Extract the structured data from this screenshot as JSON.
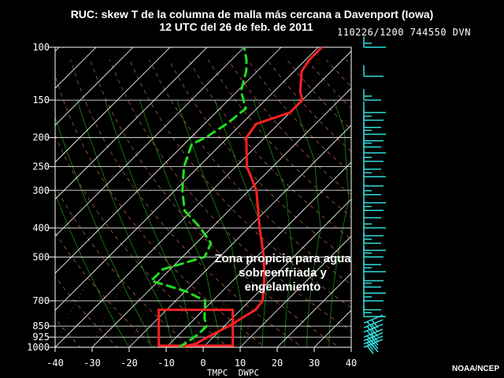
{
  "header": {
    "title_line1": "RUC: skew T de la columna de malla más cercana a Davenport (Iowa)",
    "title_line2": "12 UTC del 26 de feb. de 2011",
    "stamp": "110226/1200 744550 DVN"
  },
  "annotation": "Zona propicia para agua sobreenfriada y engelamiento",
  "credit": "NOAA/NCEP",
  "colors": {
    "background": "#000000",
    "grid": "#ffffff",
    "temperature": "#ff2020",
    "dewpoint": "#22dd22",
    "wind": "#33dddd",
    "box": "#ff2020",
    "dry_adiabat": "#b05a4a",
    "moist_adiabat": "#1a8a1a",
    "mixing_ratio": "#a05040"
  },
  "chart_data": {
    "type": "line",
    "title": "RUC: skew T de la columna de malla más cercana a Davenport (Iowa)",
    "xlabel": "TMPC  DWPC",
    "ylabel": "",
    "x_ticks": [
      -40,
      -30,
      -20,
      -10,
      0,
      10,
      20,
      30,
      40
    ],
    "x_tick_labels": [
      "-40",
      "-30",
      "-20",
      "-10",
      "0",
      "10",
      "20",
      "30",
      "40"
    ],
    "y_ticks": [
      100,
      150,
      200,
      250,
      300,
      400,
      500,
      700,
      850,
      925,
      1000
    ],
    "y_tick_labels": [
      "100",
      "150",
      "200",
      "250",
      "300",
      "400",
      "500",
      "700",
      "850",
      "925",
      "1000"
    ],
    "y_scale": "log-pressure",
    "grid": true,
    "series": [
      {
        "name": "TMPC",
        "style": "solid",
        "points": [
          [
            1000,
            -6.5
          ],
          [
            975,
            -3.0
          ],
          [
            925,
            -1.5
          ],
          [
            850,
            1.2
          ],
          [
            750,
            4.0
          ],
          [
            700,
            3.5
          ],
          [
            600,
            -1.5
          ],
          [
            500,
            -8.0
          ],
          [
            400,
            -17.0
          ],
          [
            300,
            -28.0
          ],
          [
            250,
            -37.0
          ],
          [
            200,
            -45.0
          ],
          [
            180,
            -46.0
          ],
          [
            165,
            -40.0
          ],
          [
            150,
            -40.0
          ],
          [
            140,
            -43.0
          ],
          [
            120,
            -48.0
          ],
          [
            110,
            -49.0
          ],
          [
            100,
            -49.0
          ]
        ]
      },
      {
        "name": "DWPC",
        "style": "dashed",
        "points": [
          [
            1000,
            -6.5
          ],
          [
            950,
            -5.5
          ],
          [
            900,
            -4.8
          ],
          [
            850,
            -4.8
          ],
          [
            800,
            -7.5
          ],
          [
            700,
            -12.0
          ],
          [
            650,
            -20.0
          ],
          [
            600,
            -32.0
          ],
          [
            550,
            -32.0
          ],
          [
            500,
            -24.0
          ],
          [
            450,
            -26.0
          ],
          [
            400,
            -33.0
          ],
          [
            350,
            -42.0
          ],
          [
            300,
            -48.0
          ],
          [
            250,
            -54.0
          ],
          [
            210,
            -58.0
          ],
          [
            200,
            -56.0
          ],
          [
            180,
            -54.0
          ],
          [
            160,
            -53.0
          ],
          [
            140,
            -59.0
          ],
          [
            120,
            -63.0
          ],
          [
            110,
            -66.0
          ],
          [
            100,
            -70.0
          ]
        ]
      }
    ],
    "highlight_box": {
      "label": "Zona propicia para agua sobreenfriada y engelamiento",
      "p_top": 750,
      "p_bottom": 1000,
      "x_left": -12,
      "x_right": 8
    },
    "wind_levels": [
      100,
      125,
      150,
      165,
      175,
      185,
      195,
      205,
      215,
      225,
      240,
      255,
      270,
      290,
      310,
      330,
      350,
      370,
      400,
      425,
      450,
      475,
      500,
      530,
      560,
      600,
      630,
      660,
      700,
      750,
      790,
      830,
      860,
      890,
      925,
      950,
      975,
      1000
    ]
  }
}
